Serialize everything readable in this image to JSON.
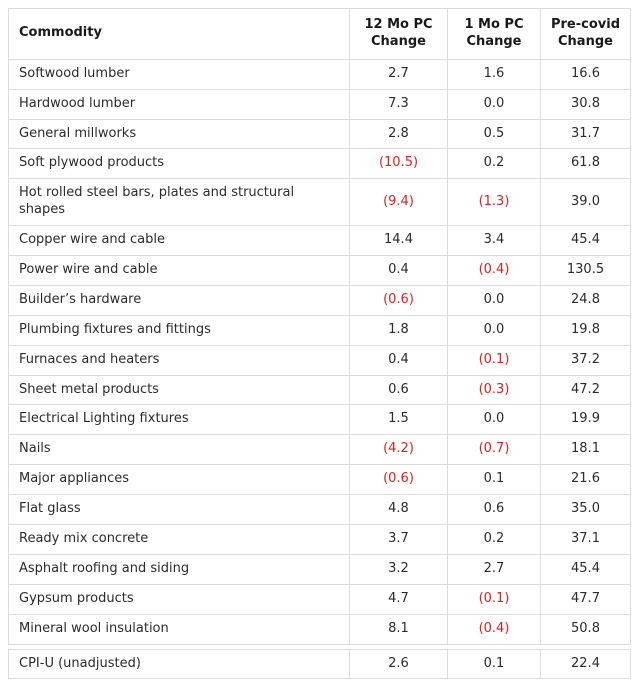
{
  "colors": {
    "body_text": "#2b2b2b",
    "header_text": "#1a1a1a",
    "negative_text": "#e01f1f",
    "border": "#dcdcdc",
    "background": "#ffffff"
  },
  "chart_data": {
    "type": "table",
    "columns": [
      "Commodity",
      "12 Mo PC Change",
      "1 Mo PC Change",
      "Pre-covid Change"
    ],
    "rows": [
      [
        "Softwood lumber",
        "2.7",
        "1.6",
        "16.6"
      ],
      [
        "Hardwood lumber",
        "7.3",
        "0.0",
        "30.8"
      ],
      [
        "General millworks",
        "2.8",
        "0.5",
        "31.7"
      ],
      [
        "Soft plywood products",
        "(10.5)",
        "0.2",
        "61.8"
      ],
      [
        "Hot rolled steel bars, plates and structural shapes",
        "(9.4)",
        "(1.3)",
        "39.0"
      ],
      [
        "Copper wire and cable",
        "14.4",
        "3.4",
        "45.4"
      ],
      [
        "Power wire and cable",
        "0.4",
        "(0.4)",
        "130.5"
      ],
      [
        "Builder’s hardware",
        "(0.6)",
        "0.0",
        "24.8"
      ],
      [
        "Plumbing fixtures and fittings",
        "1.8",
        "0.0",
        "19.8"
      ],
      [
        "Furnaces and heaters",
        "0.4",
        "(0.1)",
        "37.2"
      ],
      [
        "Sheet metal products",
        "0.6",
        "(0.3)",
        "47.2"
      ],
      [
        "Electrical Lighting fixtures",
        "1.5",
        "0.0",
        "19.9"
      ],
      [
        "Nails",
        "(4.2)",
        "(0.7)",
        "18.1"
      ],
      [
        "Major appliances",
        "(0.6)",
        "0.1",
        "21.6"
      ],
      [
        "Flat glass",
        "4.8",
        "0.6",
        "35.0"
      ],
      [
        "Ready mix concrete",
        "3.7",
        "0.2",
        "37.1"
      ],
      [
        "Asphalt roofing and siding",
        "3.2",
        "2.7",
        "45.4"
      ],
      [
        "Gypsum products",
        "4.7",
        "(0.1)",
        "47.7"
      ],
      [
        "Mineral wool insulation",
        "8.1",
        "(0.4)",
        "50.8"
      ]
    ],
    "summary_row": [
      "CPI-U (unadjusted)",
      "2.6",
      "0.1",
      "22.4"
    ],
    "negative_format": "parentheses shown in red"
  }
}
